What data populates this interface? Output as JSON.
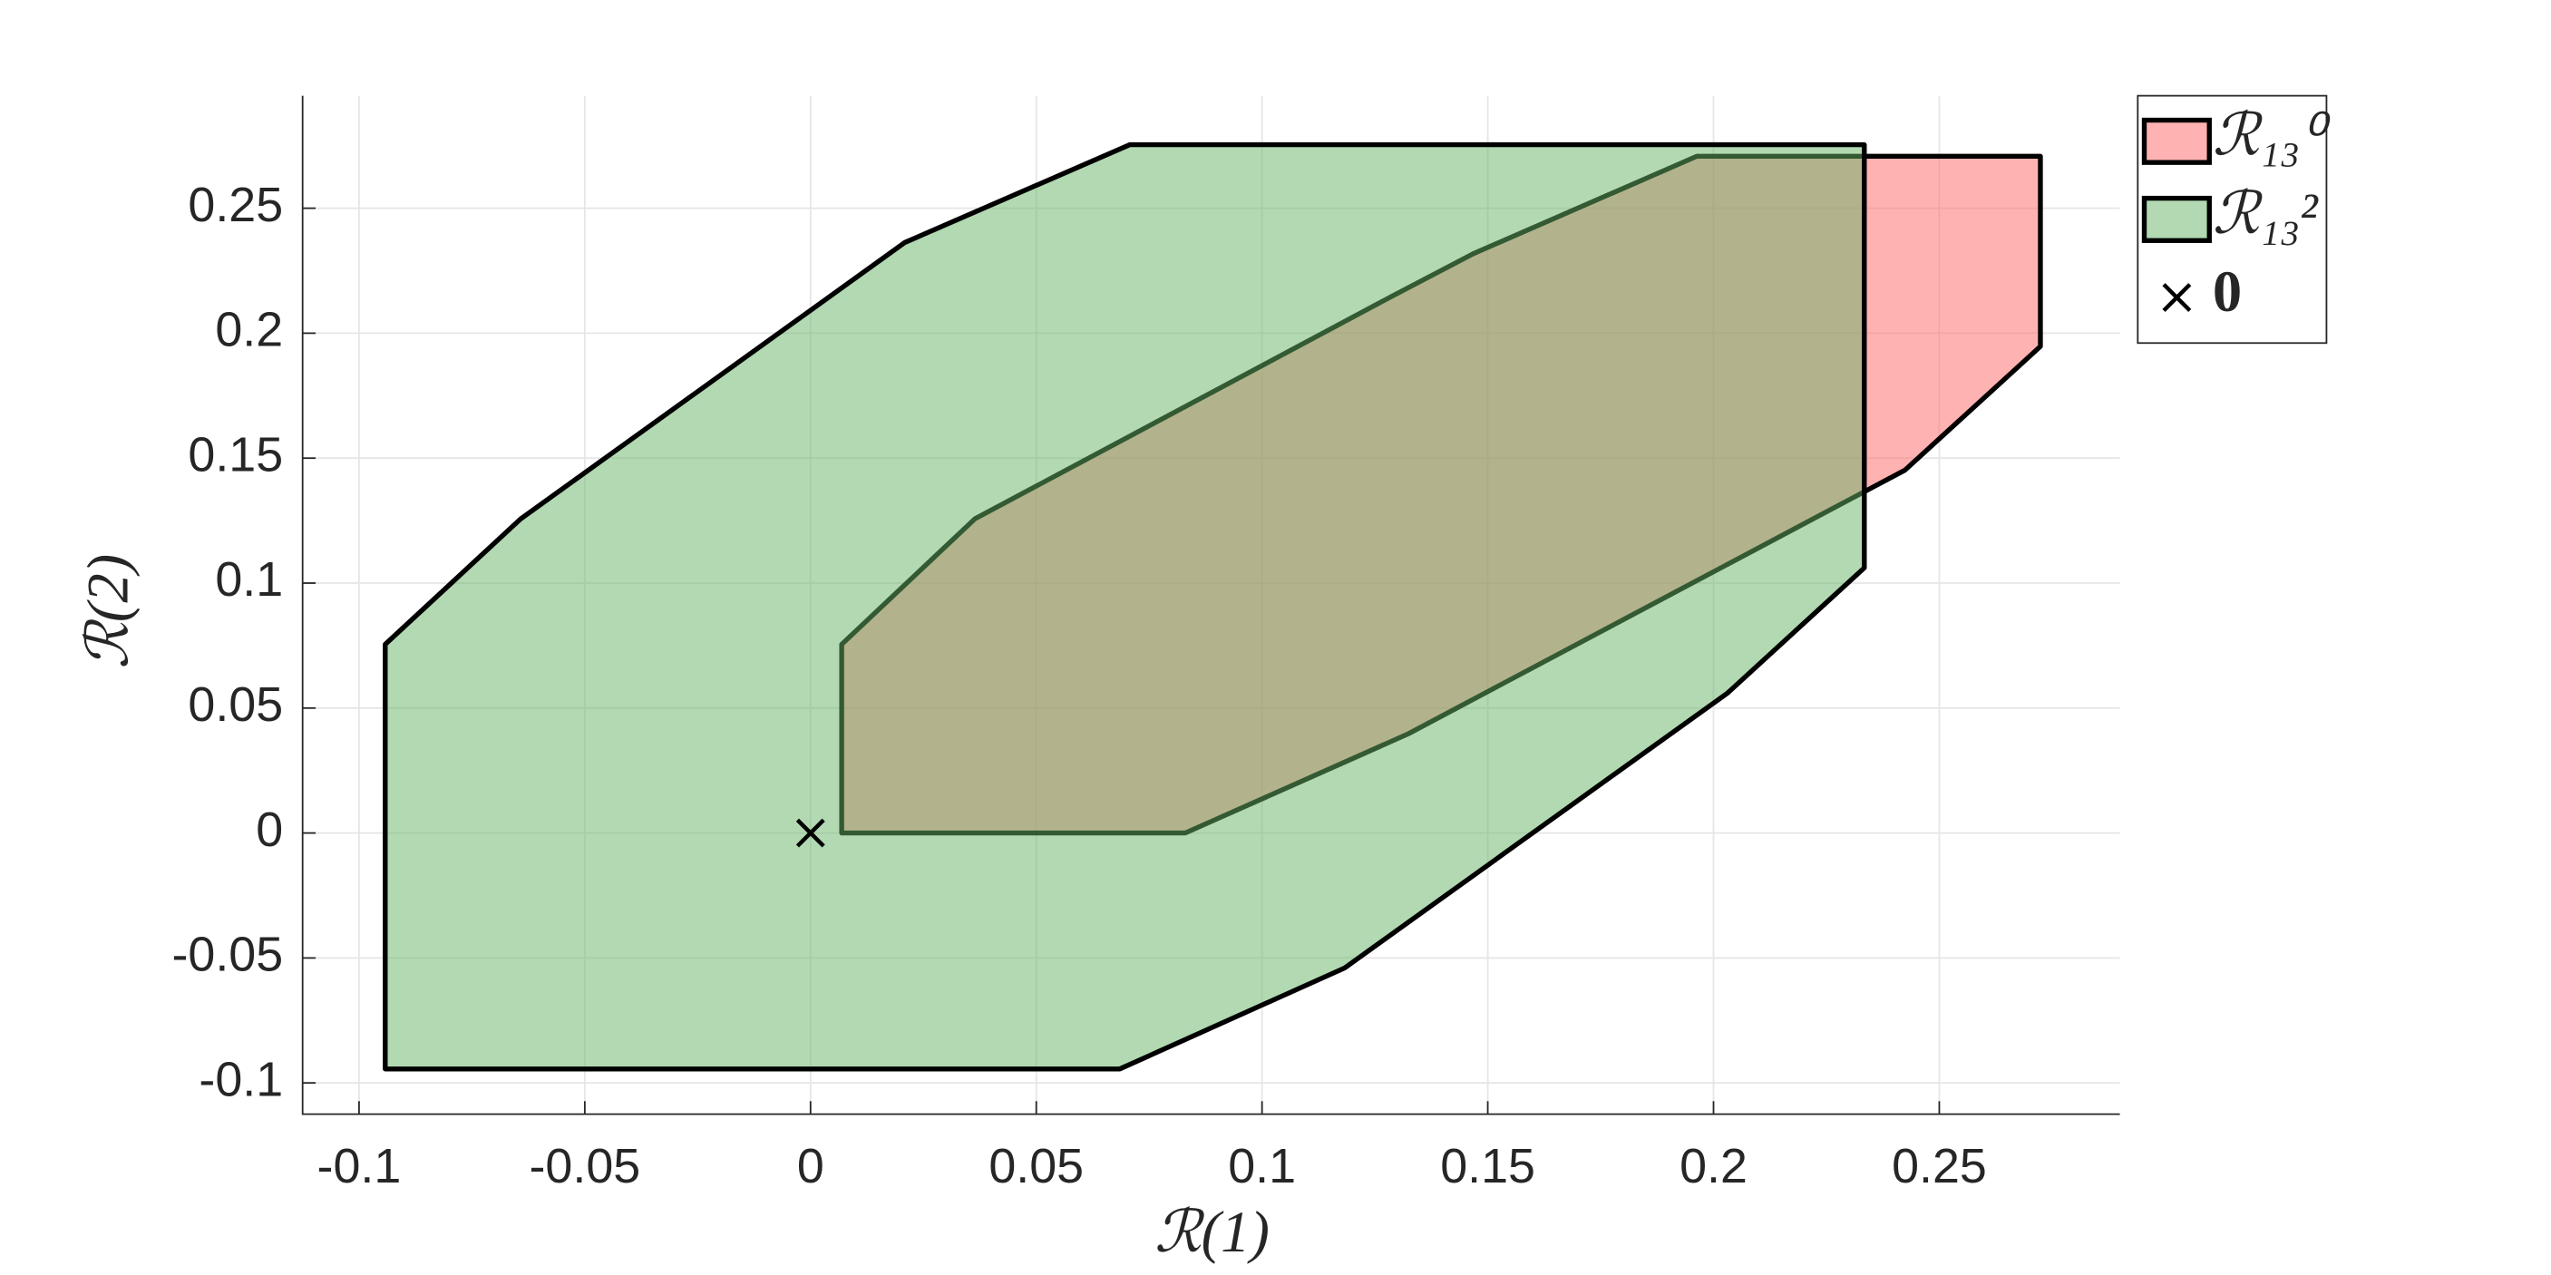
{
  "chart_data": {
    "type": "polygon",
    "xlabel": "ℛ(1)",
    "ylabel": "ℛ(2)",
    "xlim": [
      -0.1125,
      0.29
    ],
    "ylim": [
      -0.1125,
      0.295
    ],
    "xticks": [
      -0.1,
      -0.05,
      0,
      0.05,
      0.1,
      0.15,
      0.2,
      0.25
    ],
    "yticks": [
      -0.1,
      -0.05,
      0,
      0.05,
      0.1,
      0.15,
      0.2,
      0.25
    ],
    "grid": true,
    "legend": "northeast-outside",
    "series": [
      {
        "name": "ℛ₁₃⁰",
        "color": "#ff6666",
        "marker": "patch",
        "x": [
          0.0069,
          0.0364,
          0.1288,
          0.1468,
          0.1963,
          0.2724,
          0.2724,
          0.2424,
          0.1324,
          0.083,
          0.0069
        ],
        "y": [
          0.0755,
          0.1257,
          0.2148,
          0.2318,
          0.2708,
          0.2708,
          0.1947,
          0.1452,
          0.0397,
          0,
          0
        ]
      },
      {
        "name": "ℛ₁₃²",
        "color": "#66b366",
        "marker": "patch",
        "x": [
          -0.0942,
          -0.0642,
          0.0209,
          0.0707,
          0.2334,
          0.2334,
          0.2031,
          0.1183,
          0.0685,
          -0.0942
        ],
        "y": [
          0.0755,
          0.1257,
          0.2363,
          0.2754,
          0.2754,
          0.1061,
          0.056,
          -0.054,
          -0.0944,
          -0.0944
        ]
      },
      {
        "name": "0",
        "color": "#000000",
        "marker": "x",
        "x": [
          0
        ],
        "y": [
          0
        ]
      }
    ]
  }
}
